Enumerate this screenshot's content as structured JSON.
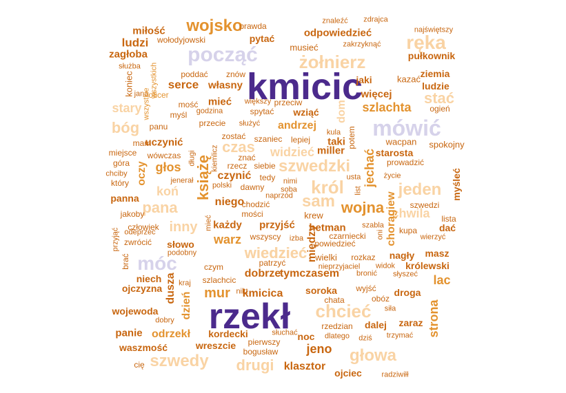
{
  "colors": {
    "dark_purple": "#4b2a8c",
    "light_lavender": "#d6d2ea",
    "dark_orange": "#c8660f",
    "mid_orange": "#e3922e",
    "light_peach": "#f9d3a4"
  },
  "words": [
    "kmicic",
    "rzekł",
    "począć",
    "mówić",
    "żołnierz",
    "ręka",
    "wojsko",
    "szwedzki",
    "król",
    "sam",
    "wojna",
    "pana",
    "koń",
    "móc",
    "chcieć",
    "wiedzieć",
    "głowa",
    "szwedy",
    "drugi",
    "jeno",
    "mur",
    "kmicica",
    "miłość",
    "ludzi",
    "zagłoba",
    "służba",
    "koniec",
    "wszystkich",
    "jana",
    "oficer",
    "poddać",
    "znów",
    "mieć",
    "serce",
    "własny",
    "jaki",
    "więcej",
    "wszystkie",
    "mość",
    "myśl",
    "godzina",
    "większy",
    "przeciw",
    "spytać",
    "wziąć",
    "dom",
    "szlachta",
    "stać",
    "ogień",
    "stary",
    "bóg",
    "panu",
    "przecie",
    "służyć",
    "andrzej",
    "kula",
    "potem",
    "wacpan",
    "spokojny",
    "mam",
    "uczynić",
    "zostać",
    "szaniec",
    "lepiej",
    "taki",
    "czas",
    "widzieć",
    "miller",
    "starosta",
    "miejsce",
    "wówczas",
    "długi",
    "kiemlicz",
    "znać",
    "jechać",
    "prowadzić",
    "góra",
    "chciby",
    "oczy",
    "głos",
    "książę",
    "rzecz",
    "siebie",
    "czynić",
    "tedy",
    "usta",
    "życie",
    "jeden",
    "który",
    "jenerał",
    "polski",
    "nimi",
    "soba",
    "dawny",
    "list",
    "panna",
    "niego",
    "naprzód",
    "chodzić",
    "chwila",
    "chorągiew",
    "szwedzi",
    "myśleć",
    "jakoby",
    "mości",
    "krew",
    "szabla",
    "lista",
    "człowiek",
    "inny",
    "mieć",
    "każdy",
    "przyjść",
    "hetman",
    "kupa",
    "dać",
    "odeprzec",
    "przyjąć",
    "zwrócić",
    "warz",
    "wszyscy",
    "izba",
    "czarniecki",
    "oni",
    "wierzyć",
    "słowo",
    "podobny",
    "powiedzieć",
    "między",
    "wiedzieć",
    "nagły",
    "masz",
    "patrzyć",
    "wielki",
    "rozkaz",
    "brać",
    "czym",
    "nieprzyjaciel",
    "widok",
    "królewski",
    "lac",
    "niech",
    "dusza",
    "dobrze",
    "tymczasem",
    "kraj",
    "szlachcic",
    "bronić",
    "słyszeć",
    "ojczyzna",
    "nikt",
    "soroka",
    "wyjść",
    "droga",
    "strona",
    "dzień",
    "chata",
    "obóz",
    "wojewoda",
    "siła",
    "dobry",
    "zaraz",
    "rzedzian",
    "dalej",
    "panie",
    "odrzekł",
    "kordecki",
    "noc",
    "słuchać",
    "dlatego",
    "waszmość",
    "wreszcie",
    "pierwszy",
    "dziś",
    "trzymać",
    "bogusław",
    "cię",
    "klasztor",
    "ojciec",
    "radziwiłł",
    "prawda",
    "znaleźć",
    "zdrajca",
    "odpowiedzieć",
    "najświętszy",
    "pytać",
    "musieć",
    "zakrzyknąć",
    "pułkownik",
    "wołodyjowski",
    "ziemia",
    "kazać",
    "ludzie"
  ]
}
